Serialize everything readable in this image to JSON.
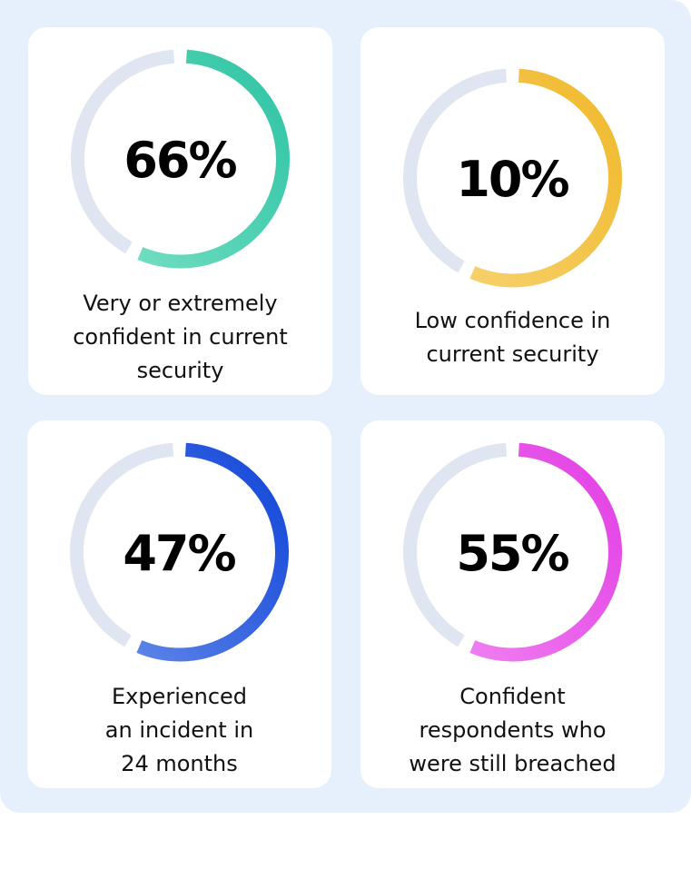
{
  "colors": {
    "track": "#dfe6f1",
    "background": "#e6f0fd"
  },
  "chart_data": [
    {
      "type": "pie",
      "values": [
        66
      ],
      "value_label": "66%",
      "label_lines": [
        "Very or extremely",
        "confident in current",
        "security"
      ],
      "colors": [
        "#6fdcc0",
        "#2dc4a4"
      ]
    },
    {
      "type": "pie",
      "values": [
        10
      ],
      "value_label": "10%",
      "label_lines": [
        "Low confidence in",
        "current security"
      ],
      "colors": [
        "#f7d06a",
        "#f0b92b"
      ]
    },
    {
      "type": "pie",
      "values": [
        47
      ],
      "value_label": "47%",
      "label_lines": [
        "Experienced",
        "an incident in",
        "24 months"
      ],
      "colors": [
        "#5b82e8",
        "#1045d8"
      ]
    },
    {
      "type": "pie",
      "values": [
        55
      ],
      "value_label": "55%",
      "label_lines": [
        "Confident",
        "respondents who",
        "were still breached"
      ],
      "colors": [
        "#ef7cf0",
        "#e23ee4"
      ]
    }
  ]
}
